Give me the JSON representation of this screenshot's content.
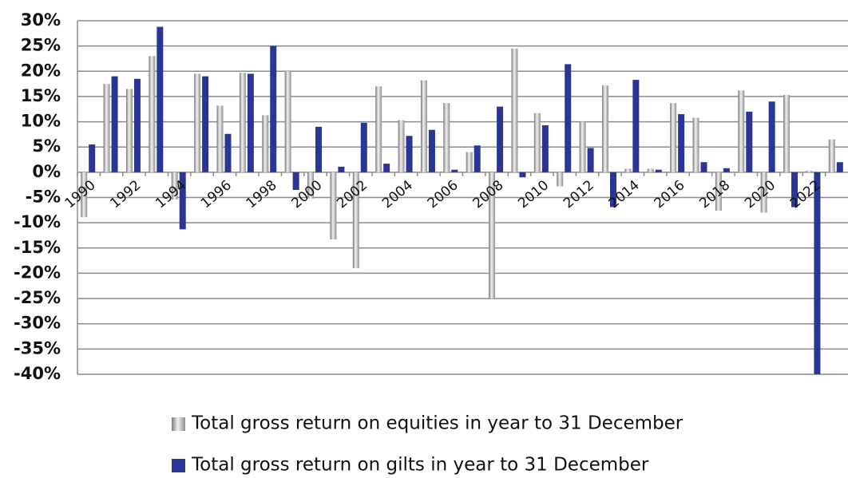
{
  "chart_data": {
    "type": "bar",
    "categories": [
      "1990",
      null,
      "1992",
      null,
      "1994",
      null,
      "1996",
      null,
      "1998",
      null,
      "2000",
      null,
      "2002",
      null,
      "2004",
      null,
      "2006",
      null,
      "2008",
      null,
      "2010",
      null,
      "2012",
      null,
      "2014",
      null,
      "2016",
      null,
      "2018",
      null,
      "2020",
      null,
      "2022",
      null
    ],
    "series": [
      {
        "name": "Total gross return on equities in year to 31 December",
        "color": "#a8a8a8",
        "values": [
          -8.9,
          17.5,
          16.5,
          23,
          -5.4,
          19.5,
          13.2,
          19.7,
          11.3,
          20,
          -5.2,
          -13.3,
          -19,
          17,
          10.3,
          18.2,
          13.7,
          4,
          -25,
          24.5,
          11.7,
          -2.8,
          10,
          17.2,
          0.7,
          0.7,
          13.7,
          10.8,
          -7.6,
          16.2,
          -8,
          15.3,
          0.3,
          6.5
        ]
      },
      {
        "name": "Total gross return on gilts in year to 31 December",
        "color": "#2b3595",
        "values": [
          5.5,
          19,
          18.5,
          28.8,
          -11.3,
          19,
          7.6,
          19.5,
          25,
          -3.5,
          9,
          1.1,
          9.8,
          1.7,
          7.2,
          8.4,
          0.5,
          5.3,
          13,
          -1,
          9.3,
          21.4,
          4.8,
          -6.9,
          18.3,
          0.5,
          11.5,
          2,
          0.8,
          12,
          14,
          -6.9,
          -40,
          2
        ]
      }
    ],
    "ylim": [
      -40,
      30
    ],
    "yticks": [
      {
        "value": -40,
        "label": "-40%"
      },
      {
        "value": -35,
        "label": "-35%"
      },
      {
        "value": -30,
        "label": "-30%"
      },
      {
        "value": -25,
        "label": "-25%"
      },
      {
        "value": -20,
        "label": "-20%"
      },
      {
        "value": -15,
        "label": "-15%"
      },
      {
        "value": -10,
        "label": "-10%"
      },
      {
        "value": -5,
        "label": "-5%"
      },
      {
        "value": 0,
        "label": "0%"
      },
      {
        "value": 5,
        "label": "5%"
      },
      {
        "value": 10,
        "label": "10%"
      },
      {
        "value": 15,
        "label": "15%"
      },
      {
        "value": 20,
        "label": "20%"
      },
      {
        "value": 25,
        "label": "25%"
      },
      {
        "value": 30,
        "label": "30%"
      }
    ],
    "grid": true,
    "legend": "bottom"
  }
}
